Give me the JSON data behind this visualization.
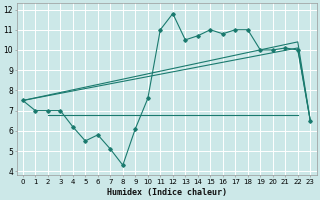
{
  "xlabel": "Humidex (Indice chaleur)",
  "xlim": [
    -0.5,
    23.5
  ],
  "ylim": [
    3.8,
    12.3
  ],
  "yticks": [
    4,
    5,
    6,
    7,
    8,
    9,
    10,
    11,
    12
  ],
  "xticks": [
    0,
    1,
    2,
    3,
    4,
    5,
    6,
    7,
    8,
    9,
    10,
    11,
    12,
    13,
    14,
    15,
    16,
    17,
    18,
    19,
    20,
    21,
    22,
    23
  ],
  "bg_color": "#cce8e8",
  "grid_color": "#ffffff",
  "line_color": "#1a7a6e",
  "line1_x": [
    0,
    1,
    2,
    3,
    4,
    5,
    6,
    7,
    8,
    9,
    10,
    11,
    12,
    13,
    14,
    15,
    16,
    17,
    18,
    19,
    20,
    21,
    22,
    23
  ],
  "line1_y": [
    7.5,
    7.0,
    7.0,
    7.0,
    6.2,
    5.5,
    5.8,
    5.1,
    4.3,
    6.1,
    7.6,
    11.0,
    11.8,
    10.5,
    10.7,
    11.0,
    10.8,
    11.0,
    11.0,
    10.0,
    10.0,
    10.1,
    10.0,
    6.5
  ],
  "upper_line_x": [
    0,
    22,
    23
  ],
  "upper_line_y": [
    7.5,
    10.4,
    6.5
  ],
  "lower_line_x": [
    0,
    22,
    23
  ],
  "lower_line_y": [
    7.5,
    10.1,
    6.5
  ],
  "flat_line_x": [
    2,
    22
  ],
  "flat_line_y": [
    6.8,
    6.8
  ]
}
